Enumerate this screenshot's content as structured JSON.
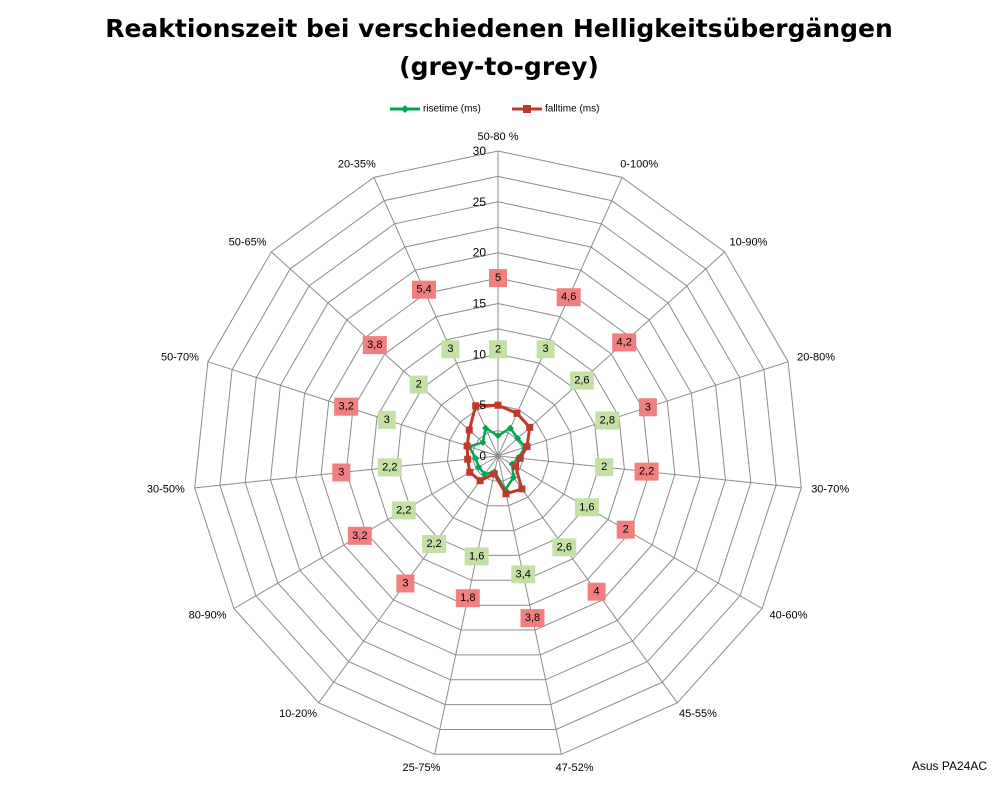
{
  "chart_data": {
    "type": "radar",
    "title": "Reaktionszeit bei verschiedenen Helligkeitsübergängen",
    "subtitle": "(grey-to-grey)",
    "categories": [
      "50-80 %",
      "0-100%",
      "10-90%",
      "20-80%",
      "30-70%",
      "40-60%",
      "45-55%",
      "47-52%",
      "25-75%",
      "10-20%",
      "80-90%",
      "30-50%",
      "50-70%",
      "50-65%",
      "20-35%"
    ],
    "series": [
      {
        "name": "risetime (ms)",
        "color": "#00a651",
        "label_bg": "#c4e0a4",
        "values": [
          2,
          3,
          2.6,
          2.8,
          2,
          1.6,
          2.6,
          3.4,
          1.6,
          2.2,
          2.2,
          2.2,
          3,
          2,
          3
        ],
        "labels": [
          "2",
          "3",
          "2,6",
          "2,8",
          "2",
          "1,6",
          "2,6",
          "3,4",
          "1,6",
          "2,2",
          "2,2",
          "2,2",
          "3",
          "2",
          "3"
        ]
      },
      {
        "name": "falltime (ms)",
        "color": "#c0392b",
        "label_bg": "#f08080",
        "values": [
          5,
          4.6,
          4.2,
          3,
          2.2,
          2,
          4,
          3.8,
          1.8,
          3,
          3.2,
          3,
          3.2,
          3.8,
          5.4
        ],
        "labels": [
          "5",
          "4,6",
          "4,2",
          "3",
          "2,2",
          "2",
          "4",
          "3,8",
          "1,8",
          "3",
          "3,2",
          "3",
          "3,2",
          "3,8",
          "5,4"
        ]
      }
    ],
    "r_ticks": [
      0,
      5,
      10,
      15,
      20,
      25,
      30
    ],
    "r_tick_labels": [
      "0",
      "5",
      "10",
      "15",
      "20",
      "25",
      "30"
    ],
    "rlim": [
      0,
      30
    ],
    "grid": true,
    "legend": "top"
  },
  "footer": {
    "text": "Asus PA24AC"
  }
}
